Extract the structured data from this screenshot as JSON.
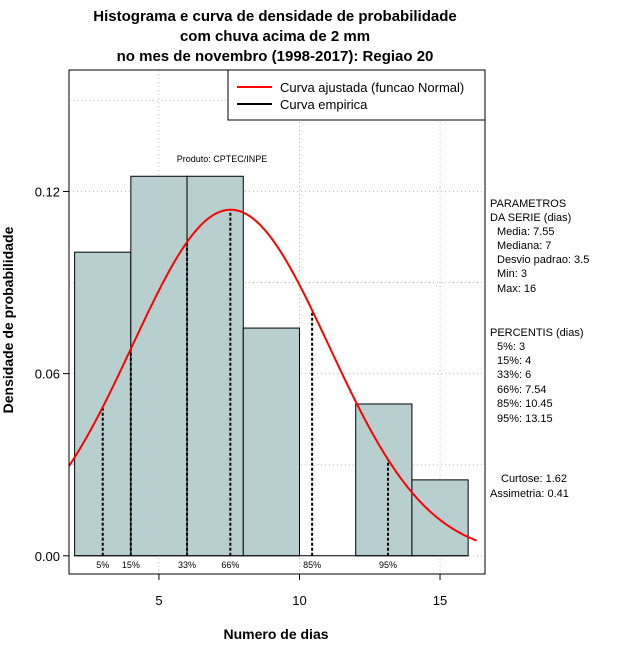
{
  "chart_data": {
    "type": "histogram",
    "title_lines": [
      "Histograma e curva de densidade de probabilidade",
      "com chuva acima de 2 mm",
      "no mes de novembro (1998-2017): Regiao 20"
    ],
    "xlabel": "Numero de dias",
    "ylabel": "Densidade de probabilidade",
    "xlim": [
      1.8,
      16.6
    ],
    "ylim": [
      -0.006,
      0.16
    ],
    "xticks": [
      5,
      10,
      15
    ],
    "xtick_labels": [
      "5",
      "10",
      "15"
    ],
    "yticks": [
      0.0,
      0.06,
      0.12
    ],
    "ytick_labels": [
      "0.00",
      "0.06",
      "0.12"
    ],
    "grid": true,
    "bins": [
      {
        "x0": 2,
        "x1": 4,
        "density": 0.1
      },
      {
        "x0": 4,
        "x1": 6,
        "density": 0.125
      },
      {
        "x0": 6,
        "x1": 8,
        "density": 0.125
      },
      {
        "x0": 8,
        "x1": 10,
        "density": 0.075
      },
      {
        "x0": 10,
        "x1": 12,
        "density": 0
      },
      {
        "x0": 12,
        "x1": 14,
        "density": 0.05
      },
      {
        "x0": 14,
        "x1": 16,
        "density": 0.025
      }
    ],
    "bar_color": "#b8cfd0",
    "fitted_curve": {
      "name": "Curva ajustada (funcao Normal)",
      "mean": 7.55,
      "sd": 3.5,
      "color": "#ff0000"
    },
    "empirical_curve": {
      "name": "Curva empirica",
      "color": "#000000"
    },
    "percentile_lines": [
      {
        "label": "5%",
        "x": 3
      },
      {
        "label": "15%",
        "x": 4
      },
      {
        "label": "33%",
        "x": 6
      },
      {
        "label": "66%",
        "x": 7.54
      },
      {
        "label": "85%",
        "x": 10.45
      },
      {
        "label": "95%",
        "x": 13.15
      }
    ],
    "product_label": "Produto: CPTEC/INPE",
    "legend_position": "top-right",
    "side_panel": {
      "parametros": [
        "PARAMETROS",
        "DA SERIE (dias)",
        "Media: 7.55",
        "Mediana: 7",
        "Desvio padrao: 3.5",
        "Min: 3",
        "Max: 16"
      ],
      "percentis": [
        "PERCENTIS (dias)",
        "5%: 3",
        "15%: 4",
        "33%: 6",
        "66%: 7.54",
        "85%: 10.45",
        "95%: 13.15"
      ],
      "shape": [
        "Curtose: 1.62",
        "Assimetria: 0.41"
      ]
    }
  }
}
